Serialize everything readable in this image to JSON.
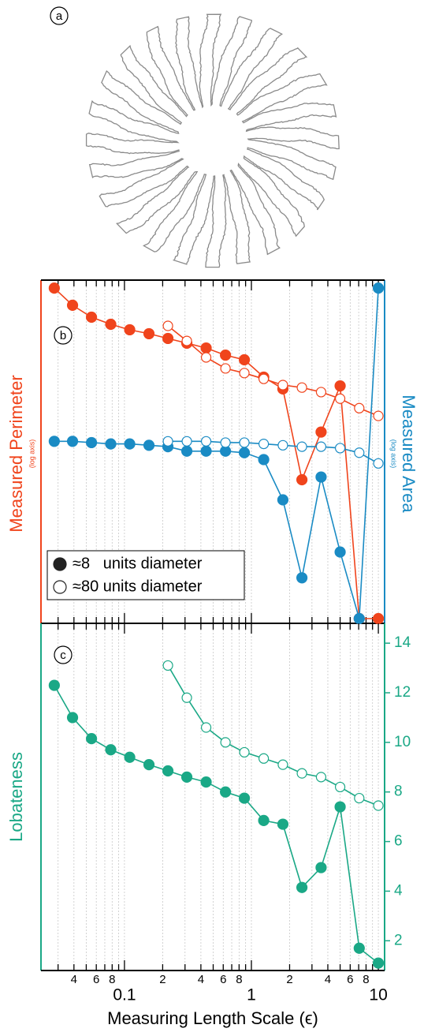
{
  "panel_a": {
    "label": "a"
  },
  "chart_data": [
    {
      "type": "line",
      "panel_label": "b",
      "xlog": true,
      "ylog": true,
      "y2log": true,
      "grid": true,
      "xlim": [
        0.022,
        11.2
      ],
      "ylim": [
        1,
        1000
      ],
      "y2lim": [
        1,
        1000
      ],
      "ylabel": "Measured Perimeter",
      "ylabel_note": "(log axis)",
      "y2label": "Measured Area",
      "y2label_note": "(log axis)",
      "x": [
        0.028,
        0.039,
        0.055,
        0.078,
        0.11,
        0.156,
        0.22,
        0.31,
        0.44,
        0.625,
        0.88,
        1.25,
        1.77,
        2.5,
        3.54,
        5,
        7.07,
        10
      ],
      "series": [
        {
          "color": "#f0441c",
          "marker": "filled",
          "axis": "y",
          "values": [
            851,
            603,
            474,
            411,
            368,
            340,
            309,
            281,
            255,
            221,
            201,
            142,
            112,
            18,
            47,
            119,
            1.1,
            1.1
          ]
        },
        {
          "color": "#f0441c",
          "marker": "open",
          "axis": "y",
          "values": [
            null,
            null,
            null,
            null,
            null,
            null,
            398,
            294,
            211,
            169,
            154,
            137,
            121,
            115,
            105,
            92,
            76,
            65
          ]
        },
        {
          "color": "#1a8bc4",
          "marker": "filled",
          "axis": "y2",
          "values": [
            39,
            39,
            38,
            37,
            37,
            36,
            35,
            32,
            32,
            32,
            31,
            27,
            12,
            2.5,
            19,
            4.2,
            1.1,
            851
          ]
        },
        {
          "color": "#1a8bc4",
          "marker": "open",
          "axis": "y2",
          "values": [
            null,
            null,
            null,
            null,
            null,
            null,
            39,
            39,
            39,
            38,
            38,
            37,
            36,
            35,
            35,
            34,
            31,
            25
          ]
        }
      ],
      "legend": [
        {
          "label": "≈8   units diameter",
          "marker": "filled"
        },
        {
          "label": "≈80 units diameter",
          "marker": "open"
        }
      ]
    },
    {
      "type": "line",
      "panel_label": "c",
      "xlog": true,
      "grid": true,
      "color": "#1aa886",
      "xlim": [
        0.022,
        11.2
      ],
      "ylim": [
        0.8,
        14.8
      ],
      "ylabel": "Lobateness",
      "xlabel": "Measuring Length Scale (ϵ)",
      "yticks": [
        2,
        4,
        6,
        8,
        10,
        12,
        14
      ],
      "xticks": [
        {
          "value": 0.03,
          "label": null
        },
        {
          "value": 0.04,
          "label": "4"
        },
        {
          "value": 0.05,
          "label": null
        },
        {
          "value": 0.06,
          "label": "6"
        },
        {
          "value": 0.07,
          "label": null
        },
        {
          "value": 0.08,
          "label": "8"
        },
        {
          "value": 0.09,
          "label": null
        },
        0.1,
        {
          "value": 0.2,
          "label": "2"
        },
        {
          "value": 0.3,
          "label": null
        },
        {
          "value": 0.4,
          "label": "4"
        },
        {
          "value": 0.5,
          "label": null
        },
        {
          "value": 0.6,
          "label": "6"
        },
        {
          "value": 0.7,
          "label": null
        },
        {
          "value": 0.8,
          "label": "8"
        },
        {
          "value": 0.9,
          "label": null
        },
        1,
        {
          "value": 2,
          "label": "2"
        },
        {
          "value": 3,
          "label": null
        },
        {
          "value": 4,
          "label": "4"
        },
        {
          "value": 5,
          "label": null
        },
        {
          "value": 6,
          "label": "6"
        },
        {
          "value": 7,
          "label": null
        },
        {
          "value": 8,
          "label": "8"
        },
        {
          "value": 9,
          "label": null
        },
        10
      ],
      "x": [
        0.028,
        0.039,
        0.055,
        0.078,
        0.11,
        0.156,
        0.22,
        0.31,
        0.44,
        0.625,
        0.88,
        1.25,
        1.77,
        2.5,
        3.54,
        5,
        7.07,
        10
      ],
      "series": [
        {
          "marker": "filled",
          "values": [
            12.3,
            11.0,
            10.15,
            9.7,
            9.4,
            9.1,
            8.85,
            8.6,
            8.4,
            8.0,
            7.75,
            6.85,
            6.7,
            4.15,
            4.95,
            7.4,
            1.7,
            1.1
          ]
        },
        {
          "marker": "open",
          "values": [
            null,
            null,
            null,
            null,
            null,
            null,
            13.1,
            11.8,
            10.6,
            10.0,
            9.6,
            9.35,
            9.1,
            8.75,
            8.6,
            8.2,
            7.75,
            7.45
          ]
        }
      ]
    }
  ]
}
